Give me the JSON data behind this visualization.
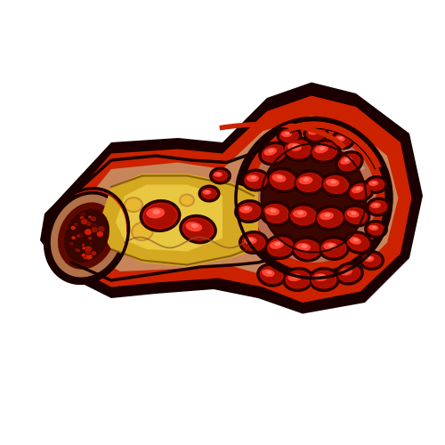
{
  "bg_color": "#ffffff",
  "outline_color": "#1A0000",
  "vessel_red": "#CC2200",
  "vessel_tan": "#C8855A",
  "vessel_tan2": "#B87050",
  "plaque_yellow": "#D4A820",
  "plaque_light": "#E8C840",
  "plaque_tan": "#C89040",
  "rbc_main": "#CC1100",
  "rbc_highlight": "#FF4433",
  "rbc_bright": "#FF7766",
  "rbc_dark": "#440000",
  "fibrin_dark": "#5C0800",
  "fibrin_mid": "#7A0C00",
  "figsize": [
    5.0,
    5.0
  ],
  "dpi": 100
}
